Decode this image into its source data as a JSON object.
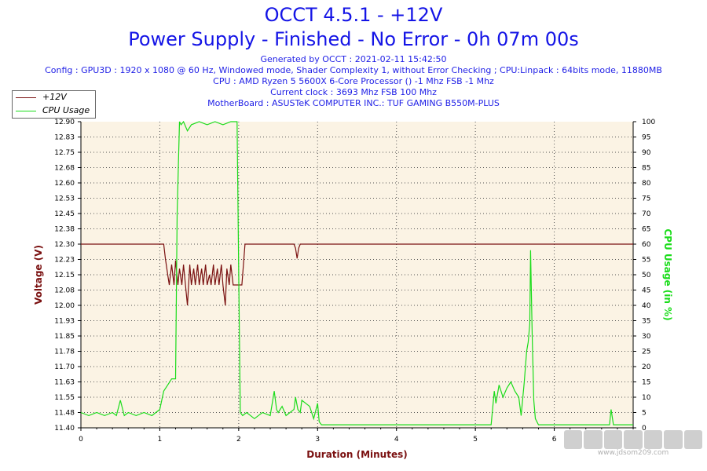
{
  "header": {
    "title": "OCCT 4.5.1 - +12V",
    "subtitle": "Power Supply - Finished - No Error - 0h 07m 00s",
    "info_lines": [
      "Generated by OCCT : 2021-02-11 15:42:50",
      "Config : GPU3D : 1920 x 1080 @ 60 Hz, Windowed mode, Shader Complexity 1, without Error Checking ; CPU:Linpack : 64bits mode, 11880MB",
      "CPU : AMD Ryzen 5 5600X 6-Core Processor () -1 Mhz FSB -1 Mhz",
      "Current clock : 3693 Mhz FSB 100 Mhz",
      "MotherBoard : ASUSTeK COMPUTER INC.: TUF GAMING B550M-PLUS"
    ]
  },
  "legend": {
    "items": [
      "+12V",
      "CPU Usage"
    ],
    "placement": "top-left"
  },
  "watermark": {
    "url": "www.jdsom209.com"
  },
  "colors": {
    "volt": "#7a1010",
    "cpu": "#1adc1a",
    "plot_bg": "#fbf3e4",
    "title": "#1414e6"
  },
  "chart_data": {
    "type": "line",
    "xlabel": "Duration (Minutes)",
    "ylabel": "Voltage (V)",
    "y2label": "CPU Usage (in %)",
    "xlim": [
      0,
      7
    ],
    "ylim": [
      11.4,
      12.9
    ],
    "y2lim": [
      0,
      100
    ],
    "grid": true,
    "x_ticks": [
      "0",
      "1",
      "2",
      "3",
      "4",
      "5",
      "6"
    ],
    "y_ticks": [
      "11.40",
      "11.48",
      "11.55",
      "11.63",
      "11.70",
      "11.78",
      "11.85",
      "11.93",
      "12.00",
      "12.08",
      "12.15",
      "12.23",
      "12.30",
      "12.38",
      "12.45",
      "12.53",
      "12.60",
      "12.68",
      "12.75",
      "12.83",
      "12.90"
    ],
    "y2_ticks": [
      "0",
      "5",
      "10",
      "15",
      "20",
      "25",
      "30",
      "35",
      "40",
      "45",
      "50",
      "55",
      "60",
      "65",
      "70",
      "75",
      "80",
      "85",
      "90",
      "95",
      "100"
    ],
    "series": [
      {
        "name": "+12V",
        "axis": "left",
        "x": [
          0,
          1.05,
          1.07,
          1.1,
          1.12,
          1.15,
          1.18,
          1.2,
          1.23,
          1.25,
          1.28,
          1.3,
          1.33,
          1.35,
          1.38,
          1.4,
          1.43,
          1.45,
          1.48,
          1.5,
          1.53,
          1.55,
          1.58,
          1.6,
          1.63,
          1.65,
          1.68,
          1.7,
          1.73,
          1.75,
          1.78,
          1.8,
          1.83,
          1.85,
          1.88,
          1.9,
          1.93,
          1.95,
          2.0,
          2.04,
          2.06,
          2.08,
          2.1,
          2.7,
          2.72,
          2.74,
          2.76,
          2.78,
          7.0
        ],
        "y": [
          12.3,
          12.3,
          12.23,
          12.15,
          12.1,
          12.2,
          12.1,
          12.22,
          12.1,
          12.18,
          12.1,
          12.2,
          12.08,
          12.0,
          12.2,
          12.1,
          12.18,
          12.1,
          12.2,
          12.1,
          12.18,
          12.1,
          12.2,
          12.1,
          12.15,
          12.1,
          12.2,
          12.1,
          12.18,
          12.1,
          12.2,
          12.1,
          12.0,
          12.18,
          12.1,
          12.2,
          12.1,
          12.1,
          12.1,
          12.1,
          12.2,
          12.3,
          12.3,
          12.3,
          12.28,
          12.23,
          12.28,
          12.3,
          12.3
        ]
      },
      {
        "name": "CPU Usage",
        "axis": "right",
        "x": [
          0,
          0.1,
          0.2,
          0.3,
          0.4,
          0.45,
          0.5,
          0.55,
          0.6,
          0.7,
          0.8,
          0.9,
          1.0,
          1.05,
          1.1,
          1.15,
          1.2,
          1.22,
          1.25,
          1.27,
          1.3,
          1.35,
          1.4,
          1.5,
          1.6,
          1.7,
          1.8,
          1.9,
          1.98,
          2.0,
          2.02,
          2.05,
          2.1,
          2.2,
          2.3,
          2.4,
          2.45,
          2.48,
          2.5,
          2.55,
          2.6,
          2.7,
          2.72,
          2.75,
          2.78,
          2.8,
          2.9,
          2.95,
          3.0,
          3.02,
          3.05,
          3.5,
          4.0,
          4.5,
          5.0,
          5.2,
          5.24,
          5.26,
          5.3,
          5.35,
          5.4,
          5.45,
          5.5,
          5.55,
          5.58,
          5.62,
          5.65,
          5.67,
          5.69,
          5.7,
          5.72,
          5.74,
          5.76,
          5.8,
          6.0,
          6.5,
          6.7,
          6.72,
          6.75,
          6.8,
          7.0
        ],
        "y": [
          5,
          4,
          5,
          4,
          5,
          4,
          9,
          4,
          5,
          4,
          5,
          4,
          6,
          12,
          14,
          16,
          16,
          70,
          100,
          99,
          100,
          97,
          99,
          100,
          99,
          100,
          99,
          100,
          100,
          50,
          5,
          4,
          5,
          3,
          5,
          4,
          12,
          6,
          5,
          7,
          4,
          6,
          10,
          6,
          5,
          9,
          7,
          3,
          8,
          2,
          1,
          1,
          1,
          1,
          1,
          1,
          12,
          8,
          14,
          10,
          13,
          15,
          12,
          10,
          4,
          15,
          25,
          28,
          34,
          58,
          30,
          9,
          3,
          1,
          1,
          1,
          1,
          6,
          1,
          1,
          1
        ]
      }
    ]
  }
}
